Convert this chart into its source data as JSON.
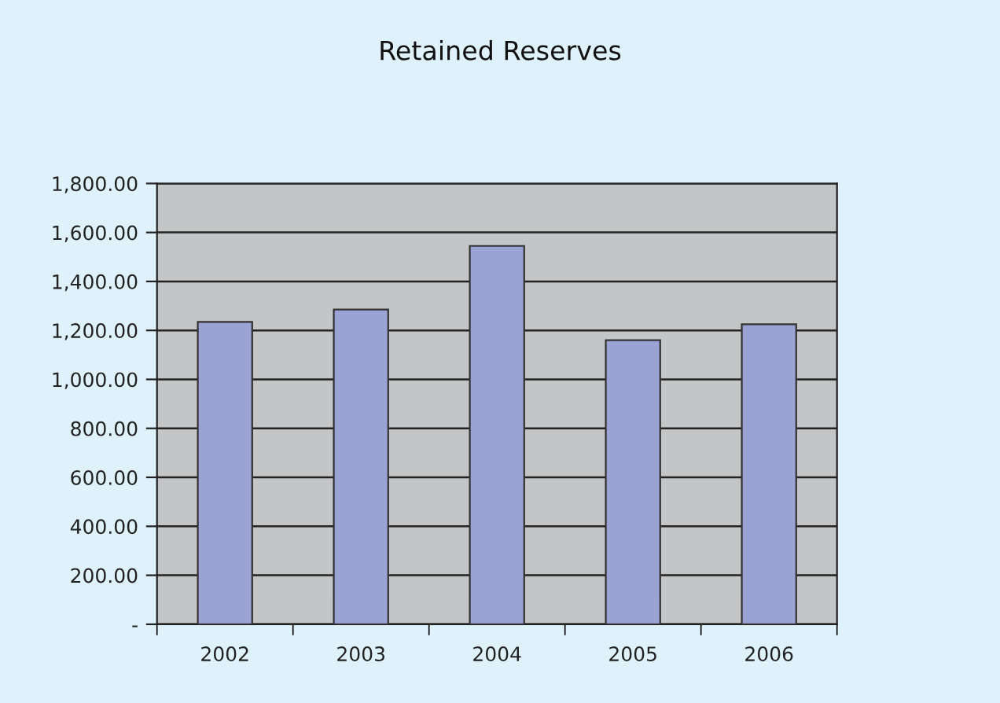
{
  "chart_data": {
    "type": "bar",
    "title": "Retained Reserves",
    "categories": [
      "2002",
      "2003",
      "2004",
      "2005",
      "2006"
    ],
    "values": [
      1235,
      1285,
      1545,
      1160,
      1225
    ],
    "color": "#9aa3d4",
    "ylim": [
      0,
      1800
    ],
    "yticks": [
      {
        "value": 0,
        "label": "-"
      },
      {
        "value": 200,
        "label": "200.00"
      },
      {
        "value": 400,
        "label": "400.00"
      },
      {
        "value": 600,
        "label": "600.00"
      },
      {
        "value": 800,
        "label": "800.00"
      },
      {
        "value": 1000,
        "label": "1,000.00"
      },
      {
        "value": 1200,
        "label": "1,200.00"
      },
      {
        "value": 1400,
        "label": "1,400.00"
      },
      {
        "value": 1600,
        "label": "1,600.00"
      },
      {
        "value": 1800,
        "label": "1,800.00"
      }
    ],
    "grid": "y"
  }
}
